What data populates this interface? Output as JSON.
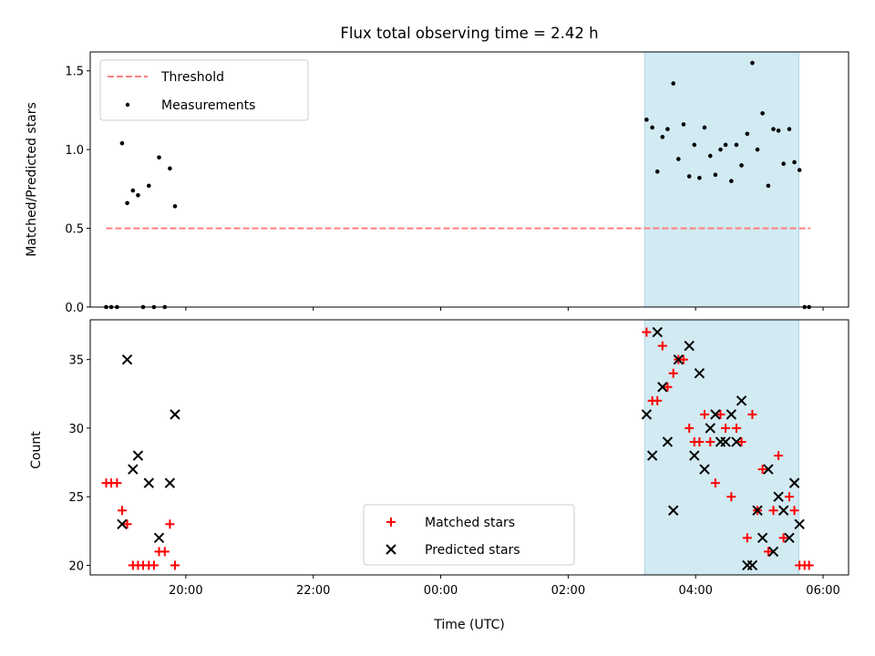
{
  "chart_data": [
    {
      "type": "scatter",
      "title": "Flux total observing time = 2.42 h",
      "xlabel": "",
      "ylabel": "Matched/Predicted stars",
      "xlim": [
        18.5,
        30.4
      ],
      "ylim": [
        0.0,
        1.62
      ],
      "yticks": [
        0.0,
        0.5,
        1.0,
        1.5
      ],
      "ytick_labels": [
        "0.0",
        "0.5",
        "1.0",
        "1.5"
      ],
      "threshold": {
        "name": "Threshold",
        "value": 0.5,
        "x_range": [
          18.75,
          29.8
        ],
        "color": "#ff7f7f"
      },
      "shaded_span": {
        "x_range": [
          27.2,
          29.62
        ],
        "color": "#add8e6"
      },
      "series": [
        {
          "name": "Measurements",
          "color": "#000000",
          "points": [
            [
              18.75,
              0.0
            ],
            [
              18.83,
              0.0
            ],
            [
              18.92,
              0.0
            ],
            [
              19.0,
              1.04
            ],
            [
              19.08,
              0.66
            ],
            [
              19.17,
              0.74
            ],
            [
              19.25,
              0.71
            ],
            [
              19.33,
              0.0
            ],
            [
              19.42,
              0.77
            ],
            [
              19.5,
              0.0
            ],
            [
              19.58,
              0.95
            ],
            [
              19.67,
              0.0
            ],
            [
              19.75,
              0.88
            ],
            [
              19.83,
              0.64
            ],
            [
              27.23,
              1.19
            ],
            [
              27.32,
              1.14
            ],
            [
              27.4,
              0.86
            ],
            [
              27.48,
              1.08
            ],
            [
              27.56,
              1.13
            ],
            [
              27.65,
              1.42
            ],
            [
              27.73,
              0.94
            ],
            [
              27.81,
              1.16
            ],
            [
              27.9,
              0.83
            ],
            [
              27.98,
              1.03
            ],
            [
              28.06,
              0.82
            ],
            [
              28.14,
              1.14
            ],
            [
              28.23,
              0.96
            ],
            [
              28.31,
              0.84
            ],
            [
              28.39,
              1.0
            ],
            [
              28.47,
              1.03
            ],
            [
              28.56,
              0.8
            ],
            [
              28.64,
              1.03
            ],
            [
              28.72,
              0.9
            ],
            [
              28.81,
              1.1
            ],
            [
              28.89,
              1.55
            ],
            [
              28.97,
              1.0
            ],
            [
              29.05,
              1.23
            ],
            [
              29.14,
              0.77
            ],
            [
              29.22,
              1.13
            ],
            [
              29.3,
              1.12
            ],
            [
              29.38,
              0.91
            ],
            [
              29.47,
              1.13
            ],
            [
              29.55,
              0.92
            ],
            [
              29.63,
              0.87
            ],
            [
              29.71,
              0.0
            ],
            [
              29.78,
              0.0
            ]
          ]
        }
      ],
      "legend": [
        "Threshold",
        "Measurements"
      ],
      "legend_position": "upper-left"
    },
    {
      "type": "scatter",
      "title": "",
      "xlabel": "Time (UTC)",
      "ylabel": "Count",
      "xlim": [
        18.5,
        30.4
      ],
      "ylim": [
        19.3,
        37.9
      ],
      "yticks": [
        20,
        25,
        30,
        35
      ],
      "ytick_labels": [
        "20",
        "25",
        "30",
        "35"
      ],
      "xticks": [
        20,
        22,
        24,
        26,
        28,
        30
      ],
      "xtick_labels": [
        "20:00",
        "22:00",
        "00:00",
        "02:00",
        "04:00",
        "06:00"
      ],
      "shaded_span": {
        "x_range": [
          27.2,
          29.62
        ],
        "color": "#add8e6"
      },
      "series": [
        {
          "name": "Matched stars",
          "marker": "plus",
          "color": "#ff0000",
          "points": [
            [
              18.75,
              26
            ],
            [
              18.83,
              26
            ],
            [
              18.92,
              26
            ],
            [
              19.0,
              24
            ],
            [
              19.08,
              23
            ],
            [
              19.17,
              20
            ],
            [
              19.25,
              20
            ],
            [
              19.33,
              20
            ],
            [
              19.42,
              20
            ],
            [
              19.5,
              20
            ],
            [
              19.58,
              21
            ],
            [
              19.67,
              21
            ],
            [
              19.75,
              23
            ],
            [
              19.83,
              20
            ],
            [
              27.23,
              37
            ],
            [
              27.32,
              32
            ],
            [
              27.4,
              32
            ],
            [
              27.48,
              36
            ],
            [
              27.56,
              33
            ],
            [
              27.65,
              34
            ],
            [
              27.73,
              35
            ],
            [
              27.81,
              35
            ],
            [
              27.9,
              30
            ],
            [
              27.98,
              29
            ],
            [
              28.06,
              29
            ],
            [
              28.14,
              31
            ],
            [
              28.23,
              29
            ],
            [
              28.31,
              26
            ],
            [
              28.39,
              31
            ],
            [
              28.47,
              30
            ],
            [
              28.56,
              25
            ],
            [
              28.64,
              30
            ],
            [
              28.72,
              29
            ],
            [
              28.81,
              22
            ],
            [
              28.89,
              31
            ],
            [
              28.97,
              24
            ],
            [
              29.05,
              27
            ],
            [
              29.14,
              21
            ],
            [
              29.22,
              24
            ],
            [
              29.3,
              28
            ],
            [
              29.38,
              22
            ],
            [
              29.47,
              25
            ],
            [
              29.55,
              24
            ],
            [
              29.63,
              20
            ],
            [
              29.71,
              20
            ],
            [
              29.78,
              20
            ]
          ]
        },
        {
          "name": "Predicted stars",
          "marker": "x",
          "color": "#000000",
          "points": [
            [
              19.0,
              23
            ],
            [
              19.08,
              35
            ],
            [
              19.17,
              27
            ],
            [
              19.25,
              28
            ],
            [
              19.42,
              26
            ],
            [
              19.58,
              22
            ],
            [
              19.75,
              26
            ],
            [
              19.83,
              31
            ],
            [
              27.23,
              31
            ],
            [
              27.32,
              28
            ],
            [
              27.4,
              37
            ],
            [
              27.48,
              33
            ],
            [
              27.56,
              29
            ],
            [
              27.65,
              24
            ],
            [
              27.73,
              35
            ],
            [
              27.9,
              36
            ],
            [
              27.98,
              28
            ],
            [
              28.06,
              34
            ],
            [
              28.14,
              27
            ],
            [
              28.23,
              30
            ],
            [
              28.31,
              31
            ],
            [
              28.39,
              29
            ],
            [
              28.47,
              29
            ],
            [
              28.56,
              31
            ],
            [
              28.64,
              29
            ],
            [
              28.72,
              32
            ],
            [
              28.81,
              20
            ],
            [
              28.89,
              20
            ],
            [
              28.97,
              24
            ],
            [
              29.05,
              22
            ],
            [
              29.14,
              27
            ],
            [
              29.22,
              21
            ],
            [
              29.3,
              25
            ],
            [
              29.38,
              24
            ],
            [
              29.47,
              22
            ],
            [
              29.55,
              26
            ],
            [
              29.63,
              23
            ]
          ]
        }
      ],
      "legend": [
        "Matched stars",
        "Predicted stars"
      ],
      "legend_position": "lower-center"
    }
  ]
}
